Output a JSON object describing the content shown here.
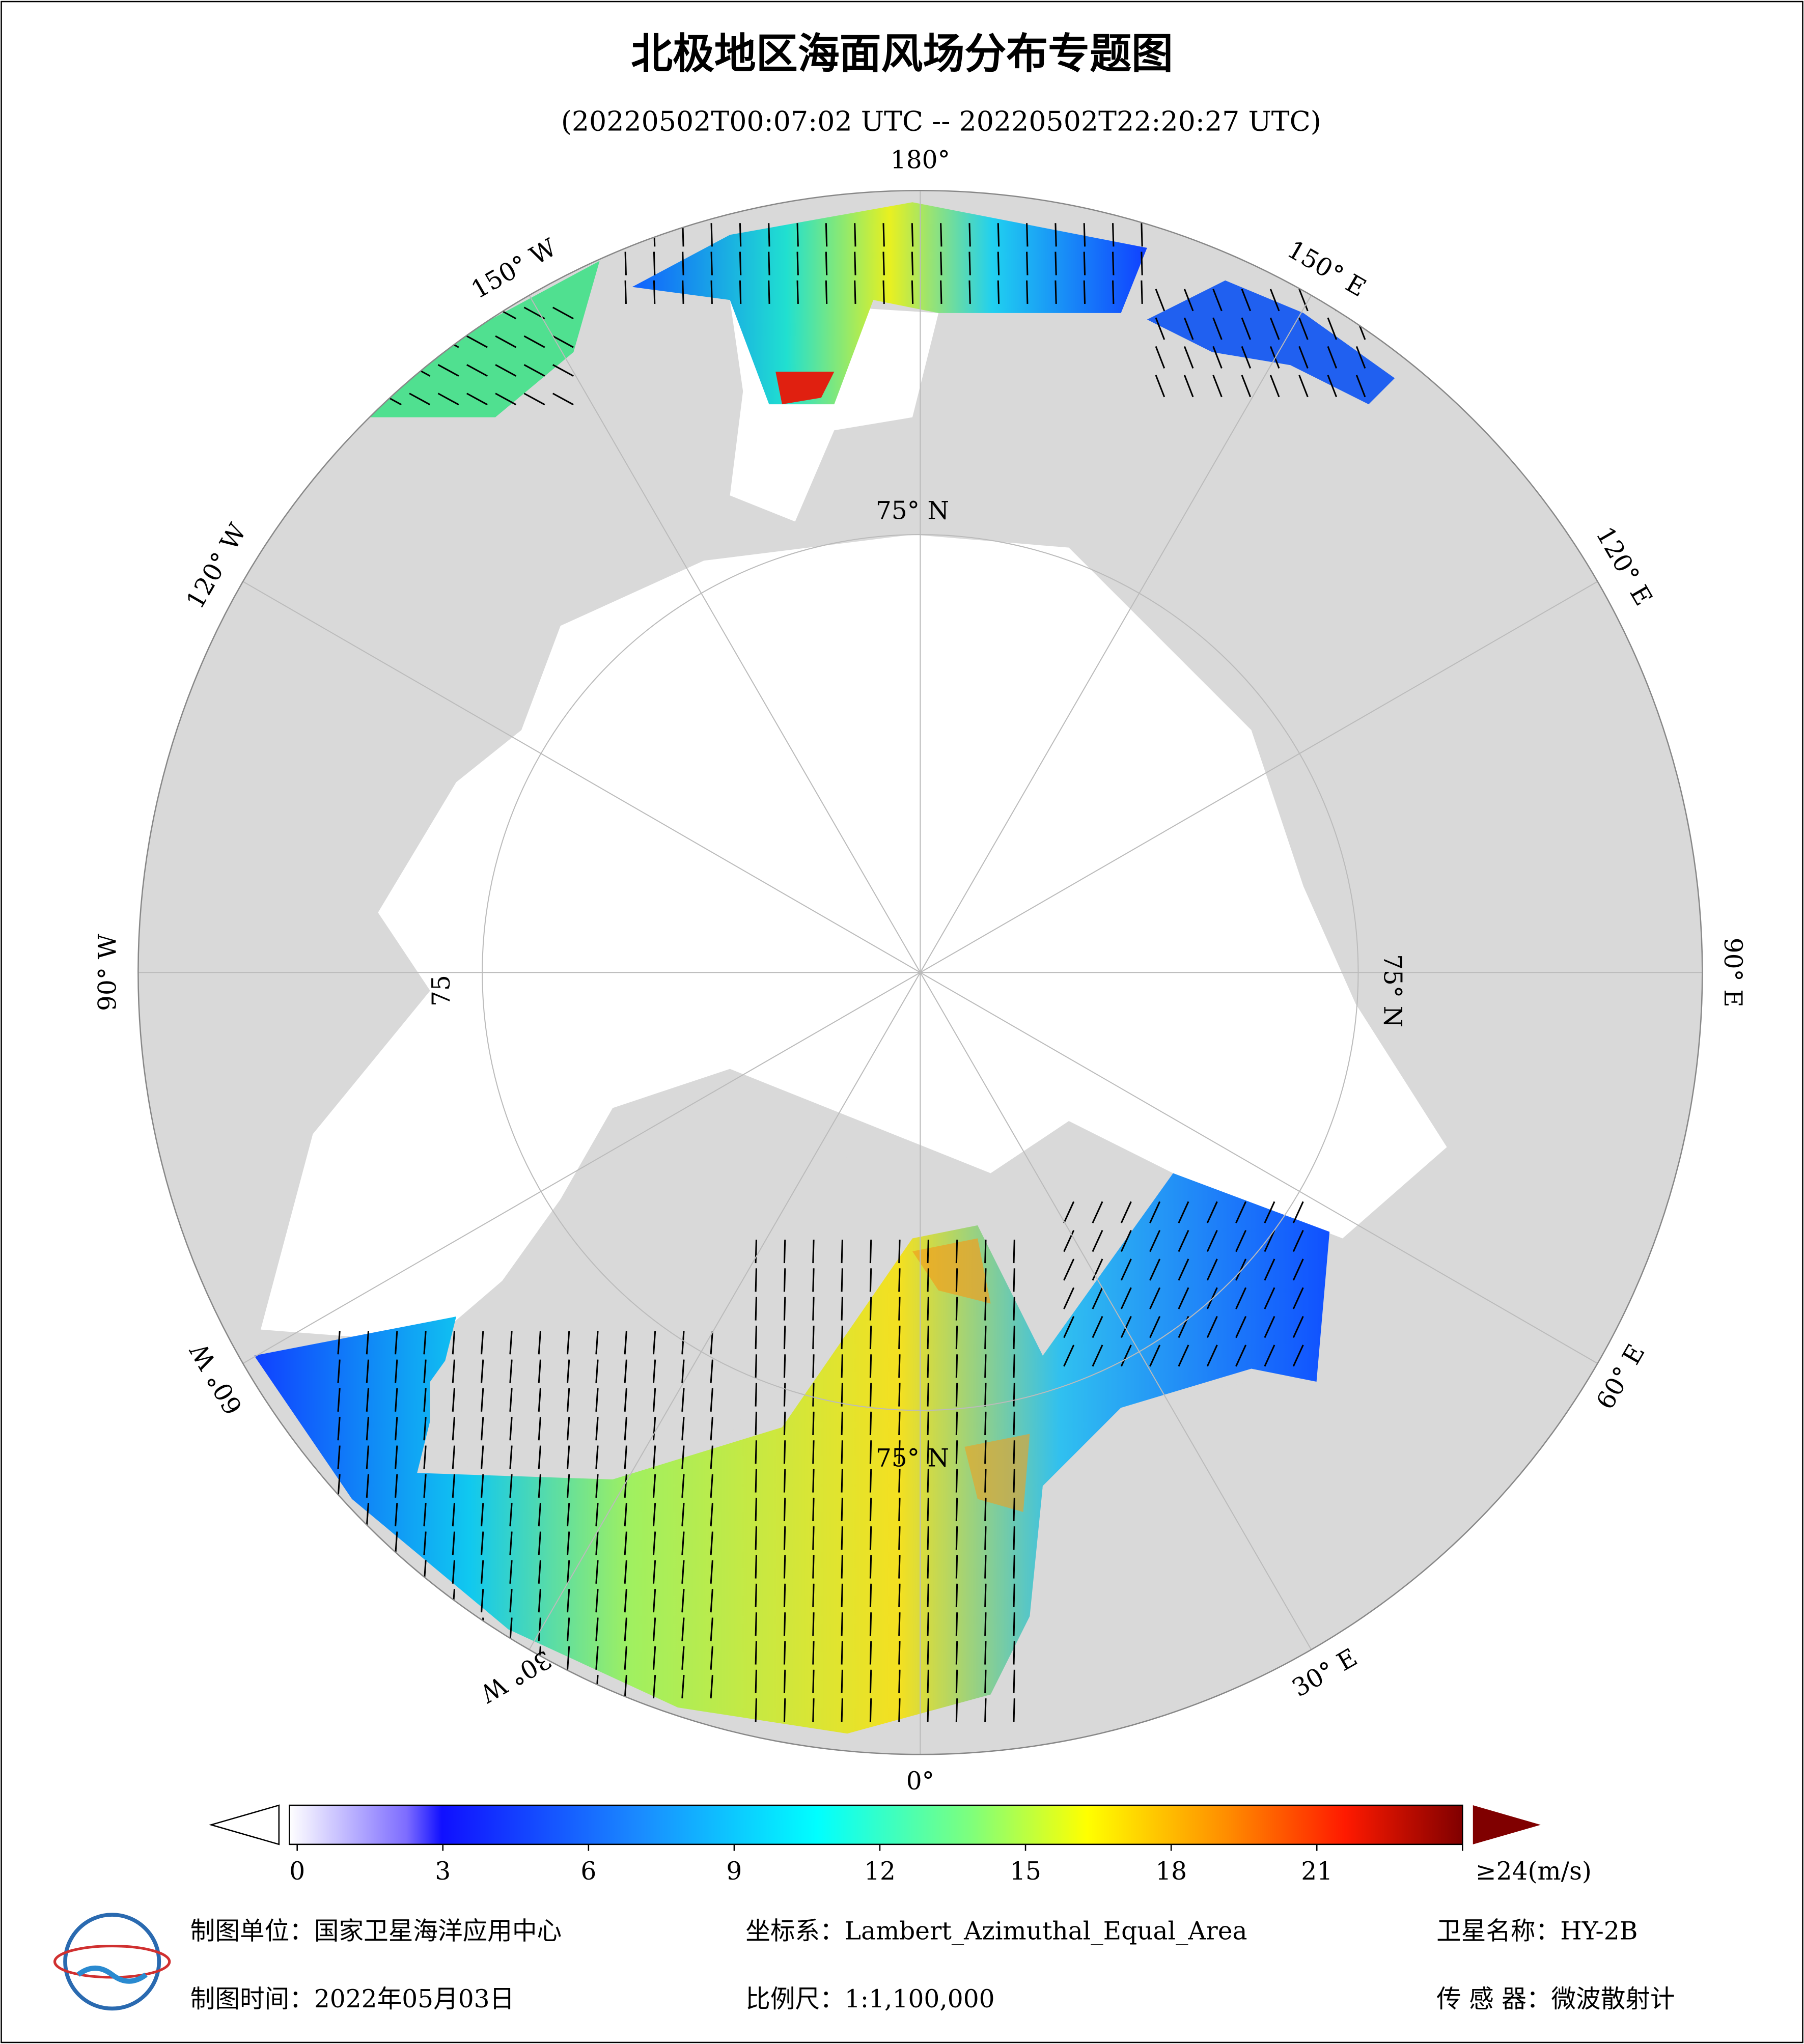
{
  "title": "北极地区海面风场分布专题图",
  "subtitle": "(20220502T00:07:02 UTC -- 20220502T22:20:27 UTC)",
  "longitude_labels": [
    "0°",
    "30° E",
    "60° E",
    "90° E",
    "120° E",
    "150° E",
    "180°",
    "150° W",
    "120° W",
    "90° W",
    "60° W",
    "30° W"
  ],
  "latitude_labels": [
    "75° N",
    "75° N",
    "75",
    "75° N"
  ],
  "colorbar": {
    "range": [
      0,
      24
    ],
    "ticks": [
      0,
      3,
      6,
      9,
      12,
      15,
      18,
      21,
      {
        "value": 24,
        "label": "≥24(m/s)"
      }
    ]
  },
  "footer": {
    "unit": "制图单位：国家卫星海洋应用中心",
    "projection": "坐标系：Lambert_Azimuthal_Equal_Area",
    "satellite": "卫星名称：HY-2B",
    "date": "制图时间：2022年05月03日",
    "scale": "比例尺：1:1,100,000",
    "sensor": "传 感 器：微波散射计"
  }
}
